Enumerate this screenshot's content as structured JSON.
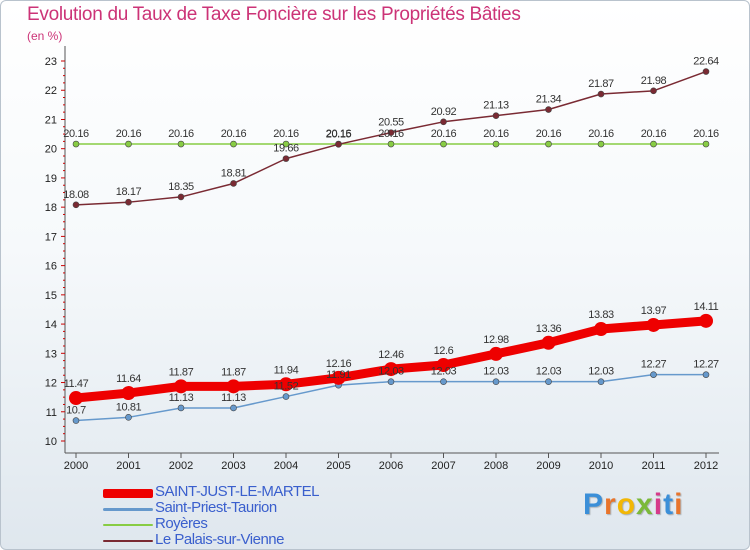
{
  "chart_data": {
    "type": "line",
    "title": "Evolution du Taux de Taxe Foncière sur les Propriétés Bâties",
    "unit_label": "(en %)",
    "x": [
      "2000",
      "2001",
      "2002",
      "2003",
      "2004",
      "2005",
      "2006",
      "2007",
      "2008",
      "2009",
      "2010",
      "2011",
      "2012"
    ],
    "y_ticks": [
      "10",
      "11",
      "12",
      "13",
      "14",
      "15",
      "16",
      "17",
      "18",
      "19",
      "20",
      "21",
      "22",
      "23"
    ],
    "ylim": [
      10,
      23
    ],
    "grid": false,
    "legend_position": "bottom-left",
    "series": [
      {
        "name": "SAINT-JUST-LE-MARTEL",
        "color": "#ee0000",
        "values": [
          11.47,
          11.64,
          11.87,
          11.87,
          11.94,
          12.16,
          12.46,
          12.6,
          12.98,
          13.36,
          13.83,
          13.97,
          14.11
        ],
        "labels": [
          "11.47",
          "11.64",
          "11.87",
          "11.87",
          "11.94",
          "12.16",
          "12.46",
          "12.6",
          "12.98",
          "13.36",
          "13.83",
          "13.97",
          "14.11"
        ]
      },
      {
        "name": "Saint-Priest-Taurion",
        "color": "#6699cc",
        "values": [
          10.7,
          10.81,
          11.13,
          11.13,
          11.52,
          11.91,
          12.03,
          12.03,
          12.03,
          12.03,
          12.03,
          12.27,
          12.27
        ],
        "labels": [
          "10.7",
          "10.81",
          "11.13",
          "11.13",
          "11.52",
          "11.91",
          "12.03",
          "12.03",
          "12.03",
          "12.03",
          "12.03",
          "12.27",
          "12.27"
        ]
      },
      {
        "name": "Royères",
        "color": "#88cc44",
        "values": [
          20.16,
          20.16,
          20.16,
          20.16,
          20.16,
          20.16,
          20.16,
          20.16,
          20.16,
          20.16,
          20.16,
          20.16,
          20.16
        ],
        "labels": [
          "20.16",
          "20.16",
          "20.16",
          "20.16",
          "20.16",
          "20.16",
          "20.16",
          "20.16",
          "20.16",
          "20.16",
          "20.16",
          "20.16",
          "20.16"
        ]
      },
      {
        "name": "Le Palais-sur-Vienne",
        "color": "#7a2a33",
        "values": [
          18.08,
          18.17,
          18.35,
          18.81,
          19.66,
          20.15,
          20.55,
          20.92,
          21.13,
          21.34,
          21.87,
          21.98,
          22.64
        ],
        "labels": [
          "18.08",
          "18.17",
          "18.35",
          "18.81",
          "19.66",
          "20.15",
          "20.55",
          "20.92",
          "21.13",
          "21.34",
          "21.87",
          "21.98",
          "22.64"
        ]
      }
    ]
  },
  "brand": {
    "letters": [
      "P",
      "r",
      "o",
      "x",
      "i",
      "t",
      "i"
    ],
    "colors": [
      "#3b8fd8",
      "#e8742b",
      "#f2b705",
      "#7bb93a",
      "#d63a8a",
      "#3b8fd8",
      "#e8742b"
    ]
  }
}
